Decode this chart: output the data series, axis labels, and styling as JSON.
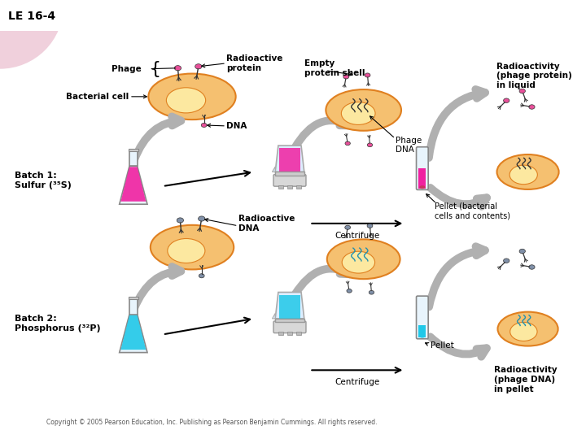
{
  "title": "LE 16-4",
  "background_color": "#ffffff",
  "labels": {
    "phage": "Phage",
    "radioactive_protein": "Radioactive\nprotein",
    "bacterial_cell": "Bacterial cell",
    "dna": "DNA",
    "batch1": "Batch 1:\nSulfur (³⁵S)",
    "batch2": "Batch 2:\nPhosphorus (³²P)",
    "empty_protein_shell": "Empty\nprotein shell",
    "phage_dna": "Phage\nDNA",
    "centrifuge1": "Centrifuge",
    "centrifuge2": "Centrifuge",
    "radioactive_dna": "Radioactive\nDNA",
    "pellet1": "Pellet (bacterial\ncells and contents)",
    "pellet2": "Pellet",
    "radioactivity_liquid": "Radioactivity\n(phage protein)\nin liquid",
    "radioactivity_pellet": "Radioactivity\n(phage DNA)\nin pellet",
    "copyright": "Copyright © 2005 Pearson Education, Inc. Publishing as Pearson Benjamin Cummings. All rights reserved."
  },
  "colors": {
    "cell_fill": "#f5c070",
    "cell_outline": "#e08020",
    "cell_inner": "#fce8a0",
    "phage_pink": "#e8509a",
    "phage_gray": "#8090a8",
    "flask_pink": "#f020a0",
    "flask_blue": "#20c8e8",
    "flask_glass": "#e8f4fc",
    "blender_glass": "#d8eef8",
    "blender_pink": "#f020a0",
    "blender_blue": "#20c8e8",
    "tube_pink": "#f020a0",
    "tube_blue": "#20c8e8",
    "arrow_gray": "#b0b0b0",
    "text_dark": "#000000",
    "corner_pink": "#f0d0dc"
  }
}
